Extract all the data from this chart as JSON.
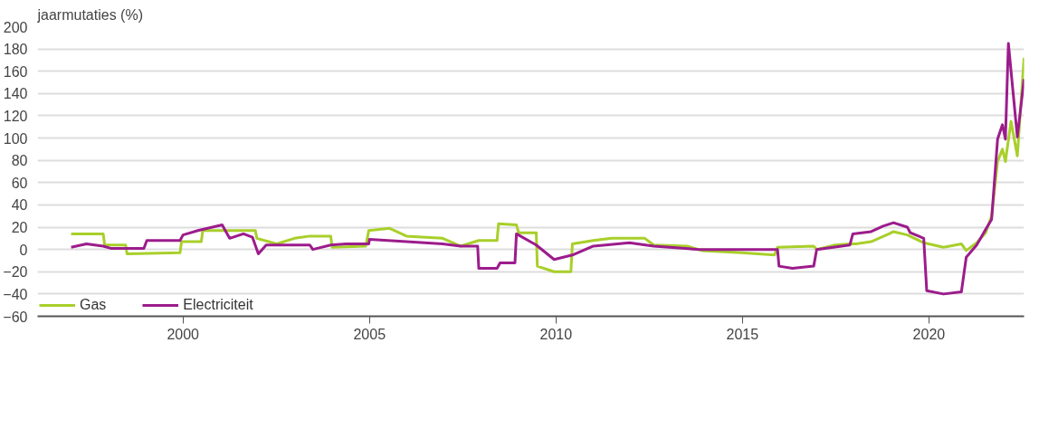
{
  "chart_data": {
    "type": "line",
    "ylabel": "jaarmutaties (%)",
    "xlim": [
      1996.1,
      2022.55
    ],
    "xticks": [
      2000,
      2005,
      2010,
      2015,
      2020
    ],
    "ylim": [
      -60,
      200
    ],
    "yticks": [
      -60,
      -40,
      -20,
      0,
      20,
      40,
      60,
      80,
      100,
      120,
      140,
      160,
      180,
      200
    ],
    "grid": "y",
    "legend": "bottom left",
    "marker": "none",
    "line_style": "solid",
    "series": [
      {
        "name": "Gas",
        "color": "#a8cf2a",
        "x": [
          1997.0,
          1997.86,
          1997.9,
          1998.46,
          1998.5,
          1999.92,
          1999.96,
          2000.49,
          2000.53,
          2001.94,
          2001.98,
          2002.51,
          2002.99,
          2003.4,
          2003.96,
          2004.0,
          2004.9,
          2004.98,
          2005.54,
          2005.99,
          2006.96,
          2007.44,
          2007.93,
          2008.42,
          2008.46,
          2008.94,
          2009.0,
          2009.47,
          2009.5,
          2009.95,
          2010.4,
          2010.44,
          2011.0,
          2011.49,
          2012.38,
          2012.62,
          2013.51,
          2013.92,
          2014.97,
          2015.86,
          2015.94,
          2016.91,
          2016.99,
          2017.48,
          2017.88,
          2018.04,
          2018.45,
          2018.93,
          2019.05,
          2019.42,
          2019.86,
          2020.39,
          2020.87,
          2021.0,
          2021.28,
          2021.52,
          2021.68,
          2021.84,
          2021.97,
          2022.05,
          2022.2,
          2022.37,
          2022.55
        ],
        "values": [
          14,
          14,
          4,
          4,
          -4,
          -3,
          7,
          7,
          17,
          17,
          10,
          5,
          10,
          12,
          12,
          2,
          3,
          17,
          19,
          12,
          10,
          3,
          8,
          8,
          23,
          22,
          15,
          15,
          -15,
          -20,
          -20,
          5,
          8,
          10,
          10,
          4,
          3,
          -1,
          -3,
          -5,
          2,
          3,
          0,
          4,
          5,
          5,
          7,
          14,
          16,
          13,
          6,
          2,
          5,
          -1,
          6,
          15,
          30,
          79,
          90,
          79,
          115,
          84,
          172
        ]
      },
      {
        "name": "Electriciteit",
        "color": "#9c1c8c",
        "x": [
          1997.0,
          1997.41,
          1997.86,
          1998.06,
          1998.95,
          1999.03,
          1999.92,
          2000.0,
          2000.4,
          2001.05,
          2001.25,
          2001.62,
          2001.86,
          2002.02,
          2002.23,
          2003.4,
          2003.48,
          2003.96,
          2004.37,
          2004.98,
          2005.0,
          2005.99,
          2006.96,
          2007.44,
          2007.9,
          2007.93,
          2008.42,
          2008.5,
          2008.9,
          2008.94,
          2009.47,
          2009.95,
          2010.44,
          2011.0,
          2011.33,
          2011.65,
          2011.97,
          2012.62,
          2013.83,
          2015.94,
          2015.98,
          2016.34,
          2016.91,
          2016.99,
          2017.88,
          2017.96,
          2018.45,
          2018.77,
          2019.05,
          2019.42,
          2019.5,
          2019.86,
          2019.94,
          2020.39,
          2020.87,
          2021.0,
          2021.28,
          2021.52,
          2021.68,
          2021.84,
          2021.97,
          2022.05,
          2022.13,
          2022.37,
          2022.55
        ],
        "values": [
          2,
          5,
          3,
          1,
          1,
          8,
          8,
          13,
          17,
          22,
          10,
          14,
          11,
          -4,
          4,
          4,
          0,
          4,
          5,
          5,
          9,
          7,
          5,
          3,
          3,
          -17,
          -17,
          -12,
          -12,
          14,
          4,
          -9,
          -5,
          3,
          4,
          5,
          6,
          3,
          0,
          0,
          -15,
          -17,
          -15,
          0,
          4,
          14,
          16,
          21,
          24,
          20,
          15,
          10,
          -37,
          -40,
          -38,
          -7,
          4,
          18,
          27,
          99,
          112,
          99,
          185,
          101,
          153
        ]
      }
    ]
  }
}
